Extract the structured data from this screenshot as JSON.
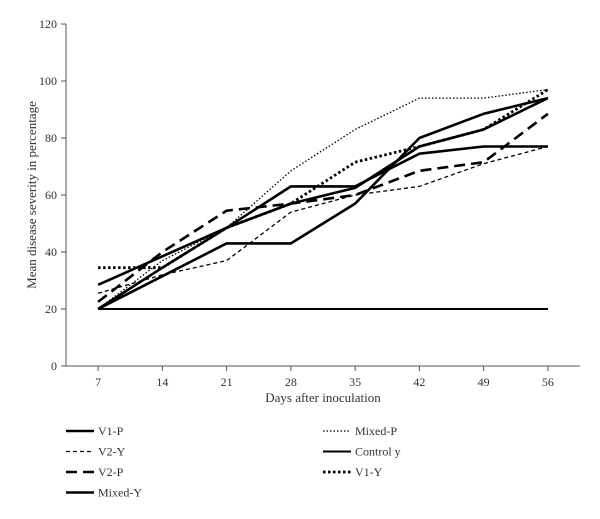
{
  "chart_data": {
    "type": "line",
    "title": "",
    "xlabel": "Days after inoculation",
    "ylabel": "Mean disease severity in percentage",
    "x": [
      7,
      14,
      21,
      28,
      35,
      42,
      49,
      56
    ],
    "xlim": [
      3.5,
      59.5
    ],
    "ylim": [
      0,
      120
    ],
    "yticks": [
      0,
      20,
      40,
      60,
      80,
      100,
      120
    ],
    "grid": false,
    "legend_position": "bottom",
    "series": [
      {
        "name": "V1-P",
        "style": "solid",
        "values": [
          28.5,
          38.5,
          48.5,
          57,
          62.5,
          77,
          83,
          94
        ]
      },
      {
        "name": "V2-Y",
        "style": "dashed",
        "values": [
          25.5,
          32,
          37,
          54,
          60,
          63,
          71,
          77
        ]
      },
      {
        "name": "V2-P",
        "style": "longdash",
        "values": [
          22.5,
          40,
          54.5,
          57,
          60,
          68.5,
          71.5,
          88.5
        ]
      },
      {
        "name": "Mixed-Y",
        "style": "solid",
        "values": [
          20,
          31.5,
          43,
          43,
          57,
          80,
          88.5,
          94
        ]
      },
      {
        "name": "Mixed-P",
        "style": "dotted",
        "values": [
          20,
          37,
          48.5,
          68.5,
          83,
          94,
          94,
          97
        ]
      },
      {
        "name": "Control y",
        "style": "solid-thin",
        "values": [
          20,
          20,
          20,
          20,
          20,
          20,
          20,
          20
        ]
      },
      {
        "name": "V1-Y",
        "style": "dotted-bold",
        "values": [
          34.5,
          34.5,
          48.5,
          57,
          71.5,
          77,
          83,
          97
        ]
      },
      {
        "name": "",
        "style": "solid",
        "values": [
          20,
          34.5,
          48.5,
          63,
          63,
          74.5,
          77,
          77
        ]
      }
    ]
  }
}
